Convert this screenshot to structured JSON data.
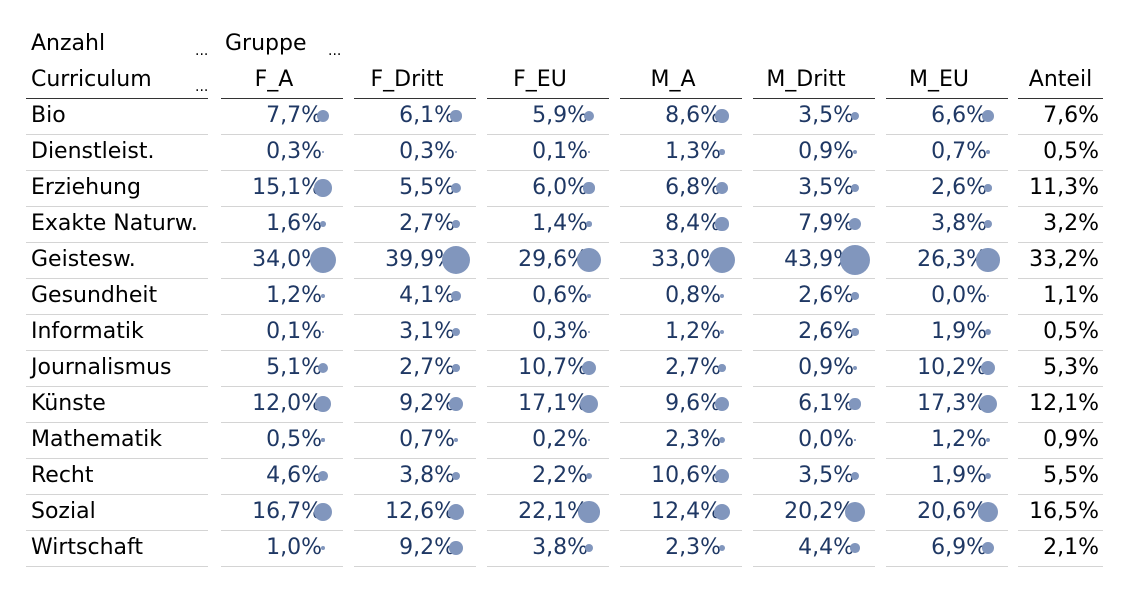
{
  "header": {
    "measure_label": "Anzahl",
    "group_label": "Gruppe",
    "row_dim_label": "Curriculum",
    "ellipsis": "..."
  },
  "colors": {
    "value_text": "#1f3864",
    "bubble": "#8196bd",
    "header_line": "#333333",
    "row_line": "#d4d4d4"
  },
  "chart_data": {
    "type": "table",
    "columns": [
      "F_A",
      "F_Dritt",
      "F_EU",
      "M_A",
      "M_Dritt",
      "M_EU"
    ],
    "share_column": "Anteil",
    "rows": [
      {
        "label": "Bio",
        "values": [
          "7,7%",
          "6,1%",
          "5,9%",
          "8,6%",
          "3,5%",
          "6,6%"
        ],
        "share": "7,6%"
      },
      {
        "label": "Dienstleist.",
        "values": [
          "0,3%",
          "0,3%",
          "0,1%",
          "1,3%",
          "0,9%",
          "0,7%"
        ],
        "share": "0,5%"
      },
      {
        "label": "Erziehung",
        "values": [
          "15,1%",
          "5,5%",
          "6,0%",
          "6,8%",
          "3,5%",
          "2,6%"
        ],
        "share": "11,3%"
      },
      {
        "label": "Exakte Naturw.",
        "values": [
          "1,6%",
          "2,7%",
          "1,4%",
          "8,4%",
          "7,9%",
          "3,8%"
        ],
        "share": "3,2%"
      },
      {
        "label": "Geistesw.",
        "values": [
          "34,0%",
          "39,9%",
          "29,6%",
          "33,0%",
          "43,9%",
          "26,3%"
        ],
        "share": "33,2%"
      },
      {
        "label": "Gesundheit",
        "values": [
          "1,2%",
          "4,1%",
          "0,6%",
          "0,8%",
          "2,6%",
          "0,0%"
        ],
        "share": "1,1%"
      },
      {
        "label": "Informatik",
        "values": [
          "0,1%",
          "3,1%",
          "0,3%",
          "1,2%",
          "2,6%",
          "1,9%"
        ],
        "share": "0,5%"
      },
      {
        "label": "Journalismus",
        "values": [
          "5,1%",
          "2,7%",
          "10,7%",
          "2,7%",
          "0,9%",
          "10,2%"
        ],
        "share": "5,3%"
      },
      {
        "label": "Künste",
        "values": [
          "12,0%",
          "9,2%",
          "17,1%",
          "9,6%",
          "6,1%",
          "17,3%"
        ],
        "share": "12,1%"
      },
      {
        "label": "Mathematik",
        "values": [
          "0,5%",
          "0,7%",
          "0,2%",
          "2,3%",
          "0,0%",
          "1,2%"
        ],
        "share": "0,9%"
      },
      {
        "label": "Recht",
        "values": [
          "4,6%",
          "3,8%",
          "2,2%",
          "10,6%",
          "3,5%",
          "1,9%"
        ],
        "share": "5,5%"
      },
      {
        "label": "Sozial",
        "values": [
          "16,7%",
          "12,6%",
          "22,1%",
          "12,4%",
          "20,2%",
          "20,6%"
        ],
        "share": "16,5%"
      },
      {
        "label": "Wirtschaft",
        "values": [
          "1,0%",
          "9,2%",
          "3,8%",
          "2,3%",
          "4,4%",
          "6,9%"
        ],
        "share": "2,1%"
      }
    ]
  }
}
